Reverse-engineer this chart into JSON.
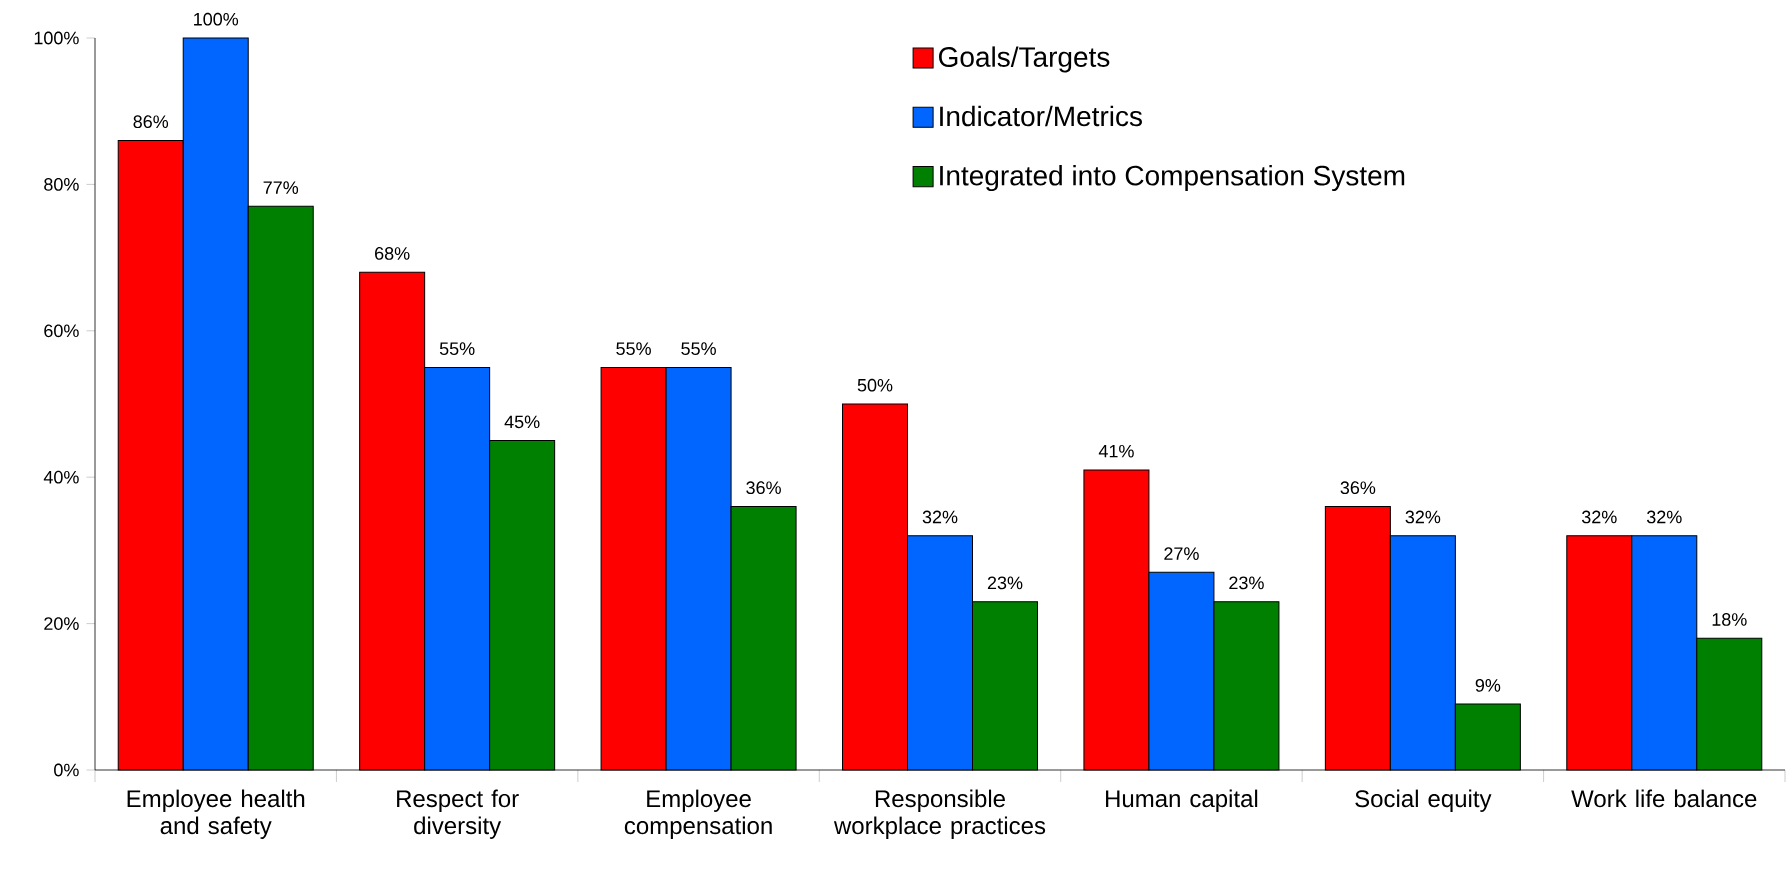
{
  "chart_data": {
    "type": "bar",
    "categories": [
      "Employee health and safety",
      "Respect for diversity",
      "Employee compensation",
      "Responsible workplace practices",
      "Human capital",
      "Social equity",
      "Work life balance"
    ],
    "series": [
      {
        "name": "Goals/Targets",
        "color": "#ff0000",
        "values": [
          86,
          68,
          55,
          50,
          41,
          36,
          32
        ],
        "value_labels": [
          "86%",
          "68%",
          "55%",
          "50%",
          "41%",
          "36%",
          "32%"
        ]
      },
      {
        "name": "Indicator/Metrics",
        "color": "#0066ff",
        "values": [
          100,
          55,
          55,
          32,
          27,
          32,
          32
        ],
        "value_labels": [
          "100%",
          "55%",
          "55%",
          "32%",
          "27%",
          "32%",
          "32%"
        ]
      },
      {
        "name": "Integrated into Compensation System",
        "color": "#008000",
        "values": [
          77,
          45,
          36,
          23,
          23,
          9,
          18
        ],
        "value_labels": [
          "77%",
          "45%",
          "36%",
          "23%",
          "23%",
          "9%",
          "18%"
        ]
      }
    ],
    "ylim": [
      0,
      100
    ],
    "yticks": [
      {
        "value": 0,
        "label": "0%"
      },
      {
        "value": 20,
        "label": "20%"
      },
      {
        "value": 40,
        "label": "40%"
      },
      {
        "value": 60,
        "label": "60%"
      },
      {
        "value": 80,
        "label": "80%"
      },
      {
        "value": 100,
        "label": "100%"
      }
    ],
    "grid": false,
    "legend": "top right"
  }
}
